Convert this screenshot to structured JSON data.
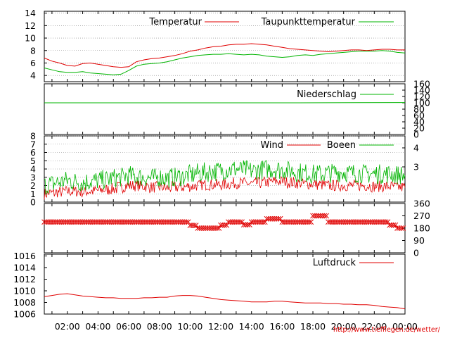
{
  "x_ticks": [
    "02:00",
    "04:00",
    "06:00",
    "08:00",
    "10:00",
    "12:00",
    "14:00",
    "16:00",
    "18:00",
    "20:00",
    "22:00",
    "00:00"
  ],
  "credit": "http://www.tiefflegen.de/wetter/",
  "colors": {
    "red": "#e00000",
    "green": "#00b400",
    "grid": "#808080",
    "axis": "#000000"
  },
  "chart_data": [
    {
      "id": "temperature",
      "type": "line",
      "x_unit": "hour",
      "x_range": [
        0.5,
        24.0
      ],
      "ylim": [
        3,
        14
      ],
      "y_ticks": [
        4,
        6,
        8,
        10,
        12,
        14
      ],
      "grid": true,
      "legend_position": "top-right",
      "series": [
        {
          "name": "Temperatur",
          "color": "red",
          "x": [
            0.5,
            1.0,
            1.5,
            2.0,
            2.5,
            3.0,
            3.5,
            4.0,
            4.5,
            5.0,
            5.5,
            6.0,
            6.5,
            7.0,
            7.5,
            8.0,
            8.5,
            9.0,
            9.5,
            10.0,
            10.5,
            11.0,
            11.5,
            12.0,
            12.5,
            13.0,
            13.5,
            14.0,
            14.5,
            15.0,
            15.5,
            16.0,
            16.5,
            17.0,
            17.5,
            18.0,
            18.5,
            19.0,
            19.5,
            20.0,
            20.5,
            21.0,
            21.5,
            22.0,
            22.5,
            23.0,
            23.5,
            24.0
          ],
          "y": [
            6.8,
            6.3,
            6.0,
            5.6,
            5.5,
            5.9,
            6.0,
            5.8,
            5.6,
            5.4,
            5.3,
            5.4,
            6.2,
            6.5,
            6.7,
            6.8,
            7.0,
            7.2,
            7.5,
            7.9,
            8.1,
            8.4,
            8.6,
            8.7,
            8.9,
            9.0,
            9.0,
            9.1,
            9.0,
            8.9,
            8.7,
            8.5,
            8.3,
            8.2,
            8.1,
            8.0,
            7.9,
            7.8,
            7.9,
            8.0,
            8.1,
            8.1,
            8.0,
            8.1,
            8.2,
            8.2,
            8.1,
            8.1
          ]
        },
        {
          "name": "Taupunkttemperatur",
          "color": "green",
          "x": [
            0.5,
            1.0,
            1.5,
            2.0,
            2.5,
            3.0,
            3.5,
            4.0,
            4.5,
            5.0,
            5.5,
            6.0,
            6.5,
            7.0,
            7.5,
            8.0,
            8.5,
            9.0,
            9.5,
            10.0,
            10.5,
            11.0,
            11.5,
            12.0,
            12.5,
            13.0,
            13.5,
            14.0,
            14.5,
            15.0,
            15.5,
            16.0,
            16.5,
            17.0,
            17.5,
            18.0,
            18.5,
            19.0,
            19.5,
            20.0,
            20.5,
            21.0,
            21.5,
            22.0,
            22.5,
            23.0,
            23.5,
            24.0
          ],
          "y": [
            5.2,
            4.9,
            4.6,
            4.5,
            4.5,
            4.6,
            4.4,
            4.3,
            4.2,
            4.1,
            4.2,
            4.8,
            5.5,
            5.8,
            5.9,
            6.0,
            6.2,
            6.5,
            6.8,
            7.0,
            7.2,
            7.3,
            7.4,
            7.4,
            7.5,
            7.4,
            7.3,
            7.4,
            7.3,
            7.1,
            7.0,
            6.9,
            7.0,
            7.2,
            7.3,
            7.2,
            7.4,
            7.5,
            7.6,
            7.7,
            7.8,
            7.9,
            7.9,
            7.9,
            8.0,
            7.9,
            7.7,
            7.6
          ]
        }
      ]
    },
    {
      "id": "precipitation",
      "type": "line",
      "x_range": [
        0.5,
        24.0
      ],
      "ylim": [
        0,
        160
      ],
      "y_ticks_right": [
        0,
        20,
        40,
        60,
        80,
        100,
        120,
        140,
        160
      ],
      "legend_position": "top-right",
      "series": [
        {
          "name": "Niederschlag",
          "color": "green",
          "x": [
            0.5,
            17.0,
            24.0
          ],
          "y": [
            100,
            100,
            101
          ]
        }
      ]
    },
    {
      "id": "wind",
      "type": "line",
      "x_range": [
        0.5,
        24.0
      ],
      "ylim": [
        0,
        8
      ],
      "y_ticks": [
        0,
        1,
        2,
        3,
        4,
        5,
        6,
        7,
        8
      ],
      "y_ticks_right": [
        3,
        4
      ],
      "grid": true,
      "legend_position": "top-right",
      "series": [
        {
          "name": "Wind",
          "color": "red",
          "base": [
            1.0,
            1.1,
            1.2,
            1.3,
            1.3,
            1.2,
            1.3,
            1.4,
            1.5,
            1.6,
            1.8,
            2.0,
            2.0,
            1.9,
            1.8,
            1.8,
            1.7,
            1.8,
            1.8,
            1.9,
            2.0,
            2.1,
            2.1,
            2.1,
            2.2,
            2.3,
            2.3,
            2.2,
            2.3,
            2.4,
            2.5,
            2.5,
            2.4,
            2.3,
            2.2,
            2.2,
            2.1,
            2.0,
            2.0,
            2.0,
            2.0,
            2.0,
            2.0,
            1.9,
            1.9,
            1.9,
            1.8,
            1.8
          ],
          "amplitude": 0.7
        },
        {
          "name": "Boeen",
          "color": "green",
          "base": [
            2.0,
            2.2,
            2.4,
            2.6,
            2.5,
            2.4,
            2.5,
            2.6,
            2.7,
            2.9,
            3.0,
            3.2,
            3.1,
            3.0,
            2.9,
            3.0,
            2.9,
            3.0,
            3.1,
            3.3,
            3.5,
            3.6,
            3.7,
            3.8,
            3.9,
            4.0,
            3.9,
            3.8,
            3.9,
            4.0,
            4.0,
            3.9,
            3.8,
            3.6,
            3.5,
            3.4,
            3.4,
            3.5,
            3.6,
            3.6,
            3.5,
            3.5,
            3.4,
            3.4,
            3.4,
            3.4,
            3.3,
            3.2
          ],
          "amplitude": 1.2
        }
      ]
    },
    {
      "id": "wind-direction",
      "type": "scatter",
      "x_range": [
        0.5,
        24.0
      ],
      "ylim": [
        0,
        360
      ],
      "y_ticks_right": [
        0,
        90,
        180,
        270,
        360
      ],
      "series": [
        {
          "name": "",
          "color": "red",
          "marker": "x",
          "x": [
            0.5,
            1.0,
            1.5,
            2.0,
            2.5,
            3.0,
            3.5,
            4.0,
            4.5,
            5.0,
            5.5,
            6.0,
            6.5,
            7.0,
            7.5,
            8.0,
            8.5,
            9.0,
            9.5,
            10.0,
            10.5,
            11.0,
            11.5,
            12.0,
            12.5,
            13.0,
            13.5,
            14.0,
            14.5,
            15.0,
            15.5,
            16.0,
            16.5,
            17.0,
            17.5,
            18.0,
            18.5,
            19.0,
            19.5,
            20.0,
            20.5,
            21.0,
            21.5,
            22.0,
            22.5,
            23.0,
            23.5,
            24.0
          ],
          "y": [
            225,
            225,
            225,
            225,
            225,
            225,
            225,
            225,
            225,
            225,
            225,
            225,
            225,
            225,
            225,
            225,
            225,
            225,
            225,
            200,
            180,
            180,
            180,
            202,
            225,
            225,
            205,
            225,
            225,
            248,
            248,
            225,
            225,
            225,
            225,
            270,
            270,
            225,
            225,
            225,
            225,
            225,
            225,
            225,
            225,
            202,
            180,
            180
          ]
        }
      ]
    },
    {
      "id": "pressure",
      "type": "line",
      "x_range": [
        0.5,
        24.0
      ],
      "ylim": [
        1006,
        1016
      ],
      "y_ticks": [
        1006,
        1008,
        1010,
        1012,
        1014,
        1016
      ],
      "legend_position": "top-right",
      "series": [
        {
          "name": "Luftdruck",
          "color": "red",
          "x": [
            0.5,
            1.0,
            1.5,
            2.0,
            2.5,
            3.0,
            3.5,
            4.0,
            4.5,
            5.0,
            5.5,
            6.0,
            6.5,
            7.0,
            7.5,
            8.0,
            8.5,
            9.0,
            9.5,
            10.0,
            10.5,
            11.0,
            11.5,
            12.0,
            12.5,
            13.0,
            13.5,
            14.0,
            14.5,
            15.0,
            15.5,
            16.0,
            16.5,
            17.0,
            17.5,
            18.0,
            18.5,
            19.0,
            19.5,
            20.0,
            20.5,
            21.0,
            21.5,
            22.0,
            22.5,
            23.0,
            23.5,
            24.0
          ],
          "y": [
            1009.0,
            1009.2,
            1009.4,
            1009.5,
            1009.3,
            1009.1,
            1009.0,
            1008.9,
            1008.8,
            1008.8,
            1008.7,
            1008.7,
            1008.7,
            1008.8,
            1008.8,
            1008.9,
            1008.9,
            1009.1,
            1009.2,
            1009.2,
            1009.1,
            1008.9,
            1008.7,
            1008.5,
            1008.4,
            1008.3,
            1008.2,
            1008.1,
            1008.1,
            1008.1,
            1008.2,
            1008.2,
            1008.1,
            1008.0,
            1007.9,
            1007.9,
            1007.9,
            1007.8,
            1007.8,
            1007.7,
            1007.7,
            1007.6,
            1007.6,
            1007.5,
            1007.3,
            1007.2,
            1007.1,
            1006.9
          ]
        }
      ]
    }
  ]
}
